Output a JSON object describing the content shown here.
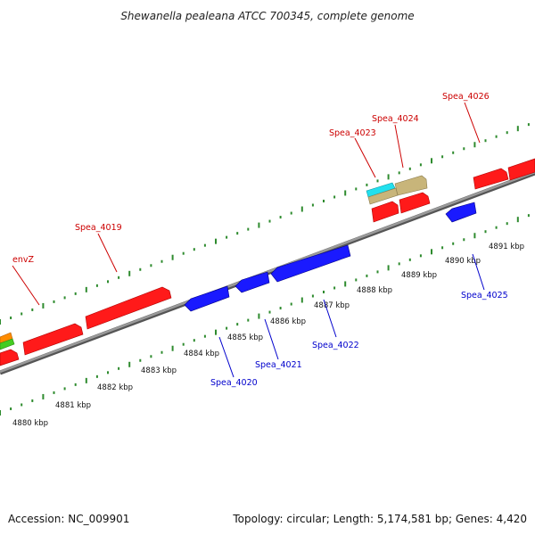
{
  "title": "Shewanella pealeana ATCC 700345, complete genome",
  "footer": {
    "accession": "Accession: NC_009901",
    "topology": "Topology: circular; Length: 5,174,581 bp; Genes: 4,420"
  },
  "colors": {
    "forward_gene": "#ff0000",
    "reverse_gene": "#0000ee",
    "forward_label": "#cc0000",
    "reverse_label": "#0000cc",
    "tick": "#2e8b2e",
    "backbone": "#888888"
  },
  "ruler": [
    {
      "label": "4880 kbp"
    },
    {
      "label": "4881 kbp"
    },
    {
      "label": "4882 kbp"
    },
    {
      "label": "4883 kbp"
    },
    {
      "label": "4884 kbp"
    },
    {
      "label": "4885 kbp"
    },
    {
      "label": "4886 kbp"
    },
    {
      "label": "4887 kbp"
    },
    {
      "label": "4888 kbp"
    },
    {
      "label": "4889 kbp"
    },
    {
      "label": "4890 kbp"
    },
    {
      "label": "4891 kbp"
    }
  ],
  "gene_labels": {
    "envZ": "envZ",
    "spea_4019": "Spea_4019",
    "spea_4020": "Spea_4020",
    "spea_4021": "Spea_4021",
    "spea_4022": "Spea_4022",
    "spea_4023": "Spea_4023",
    "spea_4024": "Spea_4024",
    "spea_4025": "Spea_4025",
    "spea_4026": "Spea_4026"
  }
}
